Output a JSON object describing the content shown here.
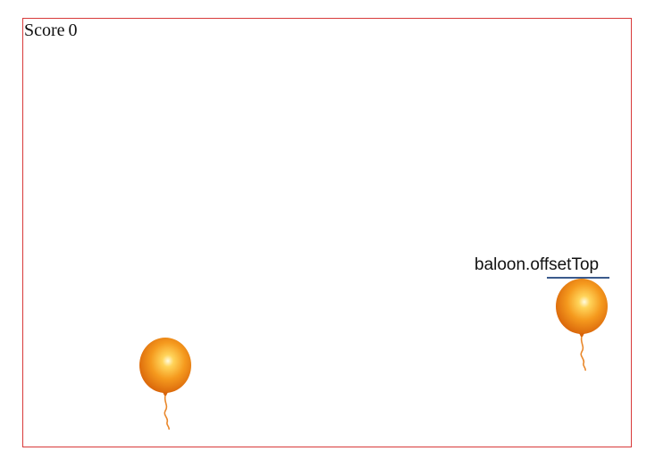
{
  "score": {
    "label": "Score",
    "value": "0"
  },
  "annotation": {
    "text": "baloon.offsetTop",
    "underline_color": "#3b5a8c"
  },
  "balloons": [
    {
      "icon": "balloon-icon",
      "color": "#f08a12"
    },
    {
      "icon": "balloon-icon",
      "color": "#f08a12"
    }
  ],
  "colors": {
    "border": "#d83a3a",
    "balloon": "#f08a12",
    "balloon_highlight": "#fff6c8"
  }
}
